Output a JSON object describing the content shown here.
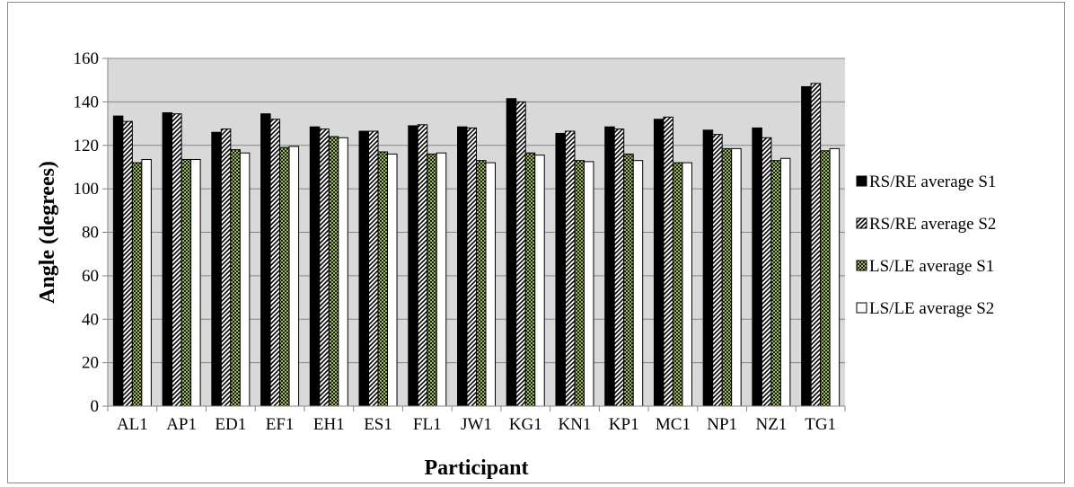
{
  "chart_data": {
    "type": "bar",
    "title": "",
    "xlabel": "Participant",
    "ylabel": "Angle (degrees)",
    "ylim": [
      0,
      160
    ],
    "yticks": [
      0,
      20,
      40,
      60,
      80,
      100,
      120,
      140,
      160
    ],
    "grid": true,
    "legend_position": "right",
    "categories": [
      "AL1",
      "AP1",
      "ED1",
      "EF1",
      "EH1",
      "ES1",
      "FL1",
      "JW1",
      "KG1",
      "KN1",
      "KP1",
      "MC1",
      "NP1",
      "NZ1",
      "TG1"
    ],
    "series": [
      {
        "name": "RS/RE average S1",
        "pattern": "solid",
        "color": "#000000",
        "values": [
          133.5,
          135,
          126,
          134.5,
          128.5,
          126.5,
          129,
          128.5,
          141.5,
          125.5,
          128.5,
          132,
          127,
          128,
          147
        ]
      },
      {
        "name": "RS/RE average S2",
        "pattern": "diagonal-hatch",
        "color": "#000000",
        "values": [
          131,
          134.5,
          127.5,
          132,
          127.5,
          126.5,
          129.5,
          128,
          140,
          126.5,
          127.5,
          133,
          125,
          123.5,
          148.5
        ]
      },
      {
        "name": "LS/LE average S1",
        "pattern": "green-checker",
        "color": "#9bbb59",
        "values": [
          112,
          113.5,
          118,
          119,
          124,
          117,
          116,
          113,
          116.5,
          113,
          116,
          112,
          118.5,
          113,
          117.5
        ]
      },
      {
        "name": "LS/LE average S2",
        "pattern": "white",
        "color": "#ffffff",
        "values": [
          113.5,
          113.5,
          116.5,
          119.5,
          123.5,
          116,
          116.5,
          112,
          115.5,
          112.5,
          113,
          112,
          118.5,
          114,
          118.5
        ]
      }
    ]
  }
}
